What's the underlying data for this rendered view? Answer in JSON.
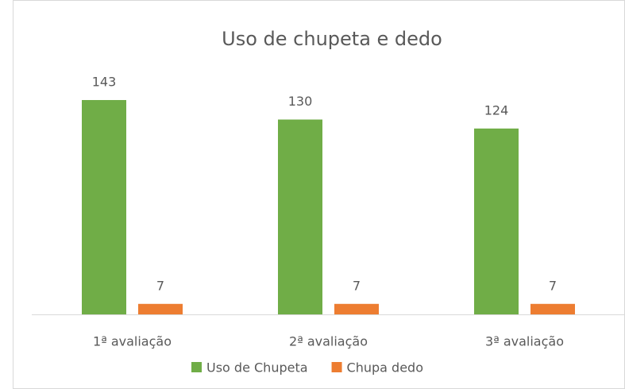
{
  "chart_data": {
    "type": "bar",
    "title": "Uso de chupeta e dedo",
    "categories": [
      "1ª avaliação",
      "2ª avaliação",
      "3ª avaliação"
    ],
    "series": [
      {
        "name": "Uso de Chupeta",
        "color": "#70ad47",
        "values": [
          143,
          130,
          124
        ]
      },
      {
        "name": "Chupa dedo",
        "color": "#ed7d31",
        "values": [
          7,
          7,
          7
        ]
      }
    ]
  }
}
